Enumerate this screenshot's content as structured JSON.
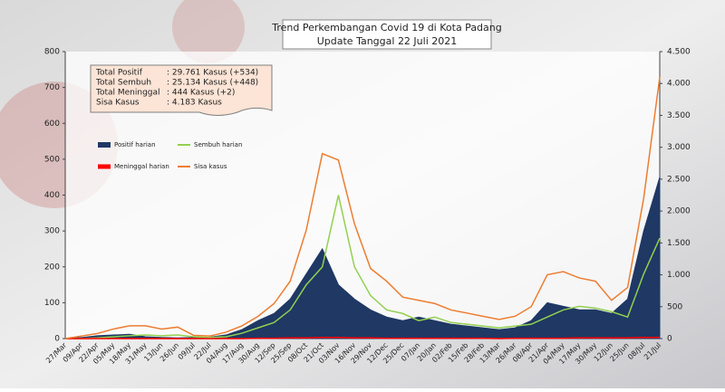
{
  "chart_data": {
    "type": "line",
    "title": "Trend Perkembangan Covid 19 di Kota Padang",
    "subtitle": "Update Tanggal  22 Juli 2021",
    "summary": [
      [
        "Total Positif",
        ": 29.761 Kasus  (+534)"
      ],
      [
        "Total Sembuh",
        ": 25.134 Kasus (+448)"
      ],
      [
        "Total Meninggal",
        ":      444 Kasus  (+2)"
      ],
      [
        "Sisa Kasus",
        ":      4.183 Kasus"
      ]
    ],
    "categories": [
      "27/Mar",
      "09/Apr",
      "22/Apr",
      "05/May",
      "18/May",
      "31/May",
      "13/Jun",
      "26/Jun",
      "09/Jul",
      "22/Jul",
      "04/Aug",
      "17/Aug",
      "30/Aug",
      "12/Sep",
      "25/Sep",
      "08/Oct",
      "21/Oct",
      "03/Nov",
      "16/Nov",
      "29/Nov",
      "12/Dec",
      "25/Dec",
      "07/Jan",
      "20/Jan",
      "02/Feb",
      "15/Feb",
      "28/Feb",
      "13/Mar",
      "26/Mar",
      "08/Apr",
      "21/Apr",
      "04/May",
      "17/May",
      "30/May",
      "12/Jun",
      "25/Jun",
      "08/Jul",
      "21/Jul"
    ],
    "series": [
      {
        "name": "Positif harian",
        "color": "#1f3864",
        "style": "area",
        "values": [
          0,
          3,
          8,
          10,
          12,
          5,
          3,
          2,
          3,
          4,
          10,
          25,
          50,
          70,
          110,
          180,
          250,
          150,
          110,
          80,
          60,
          50,
          60,
          50,
          40,
          35,
          30,
          25,
          30,
          50,
          100,
          90,
          80,
          80,
          70,
          110,
          300,
          450
        ]
      },
      {
        "name": "Sembuh harian",
        "color": "#92d050",
        "style": "line",
        "values": [
          0,
          0,
          2,
          5,
          8,
          10,
          8,
          10,
          5,
          3,
          5,
          15,
          30,
          45,
          80,
          150,
          200,
          400,
          200,
          120,
          80,
          70,
          50,
          60,
          45,
          40,
          35,
          30,
          35,
          40,
          60,
          80,
          90,
          85,
          75,
          60,
          180,
          280
        ]
      },
      {
        "name": "Meninggal harian",
        "color": "#ff0000",
        "style": "line",
        "values": [
          0,
          0,
          0,
          0,
          0,
          0,
          0,
          0,
          0,
          0,
          0,
          0,
          1,
          1,
          2,
          2,
          3,
          3,
          2,
          2,
          1,
          1,
          1,
          1,
          1,
          1,
          1,
          0,
          1,
          1,
          1,
          1,
          2,
          2,
          2,
          2,
          3,
          3
        ]
      },
      {
        "name": "Sisa kasus",
        "color": "#ed7d31",
        "style": "line",
        "axis": "y2",
        "values": [
          0,
          40,
          80,
          150,
          200,
          200,
          150,
          180,
          50,
          40,
          100,
          200,
          350,
          550,
          900,
          1700,
          2900,
          2800,
          1800,
          1100,
          900,
          650,
          600,
          550,
          450,
          400,
          350,
          300,
          350,
          500,
          1000,
          1050,
          950,
          900,
          600,
          800,
          2200,
          4100
        ]
      }
    ],
    "ylim": [
      0,
      800
    ],
    "yticks": [
      0,
      100,
      200,
      300,
      400,
      500,
      600,
      700,
      800
    ],
    "y2lim": [
      0,
      4500
    ],
    "y2ticks": [
      0,
      500,
      {
        "value": 1000,
        "label": "1.000"
      },
      {
        "value": 1500,
        "label": "1.500"
      },
      {
        "value": 2000,
        "label": "2.000"
      },
      {
        "value": 2500,
        "label": "2.500"
      },
      {
        "value": 3000,
        "label": "3.000"
      },
      {
        "value": 3500,
        "label": "3.500"
      },
      {
        "value": 4000,
        "label": "4.000"
      },
      {
        "value": 4500,
        "label": "4.500"
      }
    ]
  }
}
